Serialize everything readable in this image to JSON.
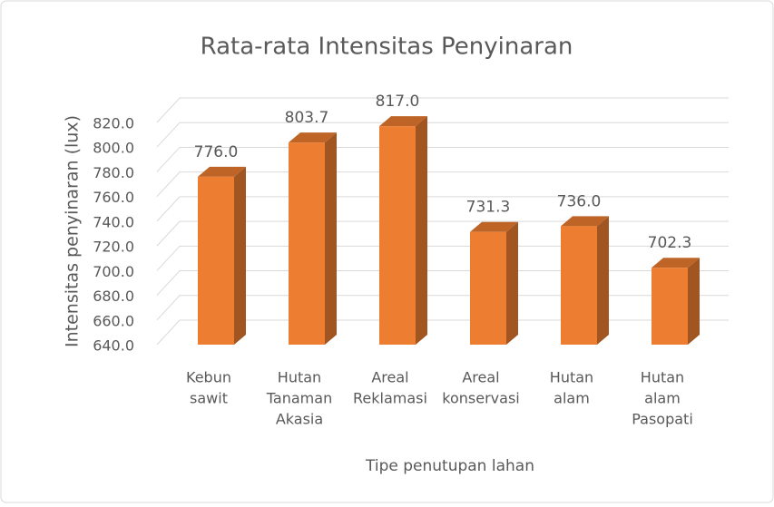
{
  "chart_data": {
    "type": "bar3d",
    "title": "Rata-rata Intensitas Penyinaran",
    "xlabel": "Tipe penutupan lahan",
    "ylabel": "Intensitas penyinaran (lux)",
    "categories": [
      [
        "Kebun",
        "sawit"
      ],
      [
        "Hutan",
        "Tanaman",
        "Akasia"
      ],
      [
        "Areal",
        "Reklamasi"
      ],
      [
        "Areal",
        "konservasi"
      ],
      [
        "Hutan",
        "alam"
      ],
      [
        "Hutan",
        "alam",
        "Pasopati"
      ]
    ],
    "values": [
      776.0,
      803.7,
      817.0,
      731.3,
      736.0,
      702.3
    ],
    "value_labels": [
      "776.0",
      "803.7",
      "817.0",
      "731.3",
      "736.0",
      "702.3"
    ],
    "color": "#ed7d31",
    "ylim": [
      640,
      820
    ],
    "yticks": [
      {
        "value": 640,
        "label": "640.0"
      },
      {
        "value": 660,
        "label": "660.0"
      },
      {
        "value": 680,
        "label": "680.0"
      },
      {
        "value": 700,
        "label": "700.0"
      },
      {
        "value": 720,
        "label": "720.0"
      },
      {
        "value": 740,
        "label": "740.0"
      },
      {
        "value": 760,
        "label": "760.0"
      },
      {
        "value": 780,
        "label": "780.0"
      },
      {
        "value": 800,
        "label": "800.0"
      },
      {
        "value": 820,
        "label": "820.0"
      }
    ],
    "grid": true
  }
}
